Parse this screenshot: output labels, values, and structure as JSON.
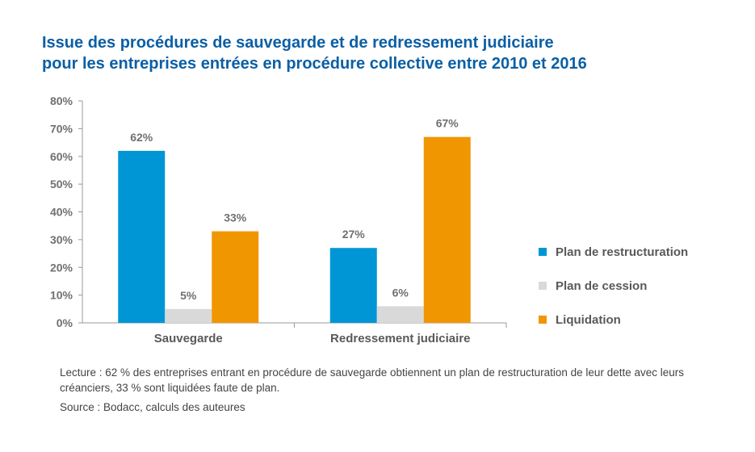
{
  "title": {
    "line1": "Issue des procédures de sauvegarde et de redressement judiciaire",
    "line2": "pour les entreprises entrées en procédure collective entre 2010 et 2016"
  },
  "chart_data": {
    "type": "bar",
    "categories": [
      "Sauvegarde",
      "Redressement judiciaire"
    ],
    "series": [
      {
        "name": "Plan de restructuration",
        "color": "#0096d6",
        "values": [
          62,
          27
        ],
        "labels": [
          "62%",
          "27%"
        ]
      },
      {
        "name": "Plan de cession",
        "color": "#d9d9d9",
        "values": [
          5,
          6
        ],
        "labels": [
          "5%",
          "6%"
        ]
      },
      {
        "name": "Liquidation",
        "color": "#f09600",
        "values": [
          33,
          67
        ],
        "labels": [
          "33%",
          "67%"
        ]
      }
    ],
    "ylim": [
      0,
      80
    ],
    "yticks": [
      0,
      10,
      20,
      30,
      40,
      50,
      60,
      70,
      80
    ],
    "ytick_labels": [
      "0%",
      "10%",
      "20%",
      "30%",
      "40%",
      "50%",
      "60%",
      "70%",
      "80%"
    ],
    "grid": false,
    "legend_position": "right"
  },
  "note": "Lecture : 62 % des entreprises entrant en procédure de sauvegarde obtiennent un plan de restructuration de leur dette avec leurs créanciers, 33 % sont liquidées faute de plan.",
  "source": "Source : Bodacc, calculs des auteures"
}
